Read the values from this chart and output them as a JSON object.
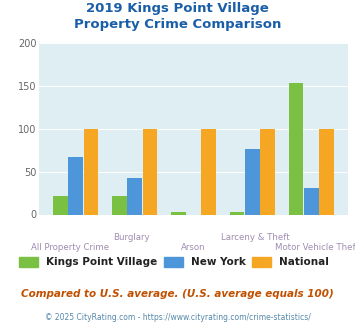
{
  "title_line1": "2019 Kings Point Village",
  "title_line2": "Property Crime Comparison",
  "categories": [
    "All Property Crime",
    "Burglary",
    "Arson",
    "Larceny & Theft",
    "Motor Vehicle Theft"
  ],
  "kings_point": [
    22,
    22,
    3,
    3,
    153
  ],
  "new_york": [
    67,
    43,
    0,
    76,
    31
  ],
  "national": [
    100,
    100,
    100,
    100,
    100
  ],
  "colors": {
    "kings_point": "#7ac143",
    "new_york": "#4d96d9",
    "national": "#f5a623"
  },
  "ylim": [
    0,
    200
  ],
  "yticks": [
    0,
    50,
    100,
    150,
    200
  ],
  "plot_bg": "#deeef2",
  "title_color": "#1a5ea8",
  "axis_label_color": "#a08cb0",
  "legend_labels": [
    "Kings Point Village",
    "New York",
    "National"
  ],
  "footer_text": "Compared to U.S. average. (U.S. average equals 100)",
  "copyright_text": "© 2025 CityRating.com - https://www.cityrating.com/crime-statistics/",
  "footer_color": "#c05000",
  "copyright_color": "#5588aa"
}
